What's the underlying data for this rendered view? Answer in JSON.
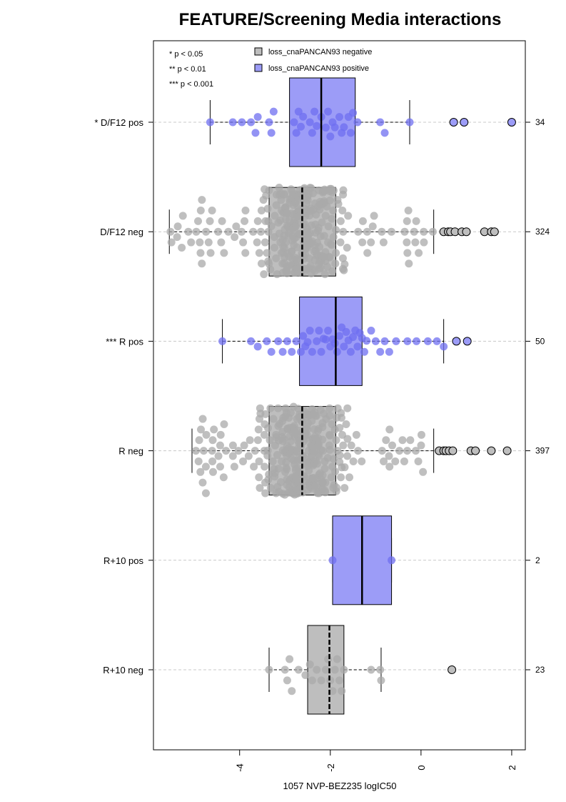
{
  "chart_data": {
    "type": "boxplot",
    "orientation": "horizontal",
    "title": "FEATURE/Screening Media interactions",
    "xlabel": "1057 NVP-BEZ235 logIC50",
    "ylabel": "",
    "xlim": [
      -5.9,
      2.3
    ],
    "x_ticks": [
      -4,
      -2,
      0,
      2
    ],
    "x_tick_labels": [
      "-4",
      "-2",
      "0",
      "2"
    ],
    "grid": "dashed horizontal line per group",
    "legend_position": "top-left",
    "significance_legend": [
      "* p < 0.05",
      "** p < 0.01",
      "*** p < 0.001"
    ],
    "series": [
      {
        "name": "loss_cnaPANCAN93 negative",
        "color": "#bebebe",
        "point_color": "#a9a9a9"
      },
      {
        "name": "loss_cnaPANCAN93 positive",
        "color": "#9c9cf7",
        "point_color": "#6f6ff0"
      }
    ],
    "groups": [
      {
        "label": "* D/F12 pos",
        "series": "loss_cnaPANCAN93 positive",
        "n": "34",
        "whisker_low": -4.65,
        "q1": -2.9,
        "median": -2.2,
        "q3": -1.45,
        "whisker_high": -0.25,
        "outliers": [
          0.72,
          0.95,
          2.0
        ],
        "points": [
          -4.65,
          -4.15,
          -3.95,
          -3.75,
          -3.65,
          -3.6,
          -3.35,
          -3.3,
          -3.25,
          -2.8,
          -2.75,
          -2.7,
          -2.65,
          -2.6,
          -2.45,
          -2.4,
          -2.35,
          -2.3,
          -2.2,
          -2.1,
          -2.05,
          -2.0,
          -1.95,
          -1.9,
          -1.8,
          -1.75,
          -1.7,
          -1.6,
          -1.55,
          -1.5,
          -1.4,
          -0.9,
          -0.8,
          -0.25
        ]
      },
      {
        "label": "D/F12 neg",
        "series": "loss_cnaPANCAN93 negative",
        "n": "324",
        "whisker_low": -5.55,
        "q1": -3.35,
        "median": -2.62,
        "q3": -1.88,
        "whisker_high": 0.28,
        "outliers": [
          0.5,
          0.6,
          0.65,
          0.75,
          0.9,
          1.0,
          1.4,
          1.55,
          1.62
        ]
      },
      {
        "label": "*** R pos",
        "series": "loss_cnaPANCAN93 positive",
        "n": "50",
        "whisker_low": -4.38,
        "q1": -2.68,
        "median": -1.88,
        "q3": -1.3,
        "whisker_high": 0.5,
        "outliers": [
          0.78,
          1.02
        ],
        "points": [
          -4.38,
          -3.75,
          -3.6,
          -3.4,
          -3.3,
          -3.15,
          -3.05,
          -2.95,
          -2.85,
          -2.75,
          -2.65,
          -2.6,
          -2.55,
          -2.5,
          -2.45,
          -2.4,
          -2.3,
          -2.25,
          -2.2,
          -2.15,
          -2.1,
          -2.05,
          -2.0,
          -1.95,
          -1.9,
          -1.85,
          -1.8,
          -1.75,
          -1.7,
          -1.65,
          -1.6,
          -1.55,
          -1.5,
          -1.45,
          -1.4,
          -1.35,
          -1.3,
          -1.25,
          -1.2,
          -1.1,
          -1.0,
          -0.9,
          -0.8,
          -0.7,
          -0.55,
          -0.3,
          -0.1,
          0.15,
          0.35,
          0.5
        ]
      },
      {
        "label": "R neg",
        "series": "loss_cnaPANCAN93 negative",
        "n": "397",
        "whisker_low": -5.05,
        "q1": -3.35,
        "median": -2.62,
        "q3": -1.88,
        "whisker_high": 0.28,
        "outliers": [
          0.4,
          0.5,
          0.55,
          0.62,
          0.7,
          1.1,
          1.2,
          1.55,
          1.9
        ]
      },
      {
        "label": "R+10 pos",
        "series": "loss_cnaPANCAN93 positive",
        "n": "2",
        "whisker_low": -1.95,
        "q1": -1.95,
        "median": -1.3,
        "q3": -0.65,
        "whisker_high": -0.65,
        "outliers": [],
        "points": [
          -1.95,
          -0.65
        ]
      },
      {
        "label": "R+10 neg",
        "series": "loss_cnaPANCAN93 negative",
        "n": "23",
        "whisker_low": -3.35,
        "q1": -2.5,
        "median": -2.02,
        "q3": -1.7,
        "whisker_high": -0.88,
        "outliers": [
          0.68
        ],
        "points": [
          -3.35,
          -3.0,
          -2.95,
          -2.9,
          -2.85,
          -2.7,
          -2.55,
          -2.45,
          -2.4,
          -2.3,
          -2.2,
          -2.1,
          -2.05,
          -2.0,
          -1.95,
          -1.9,
          -1.85,
          -1.8,
          -1.75,
          -1.7,
          -1.1,
          -0.9,
          -0.88
        ]
      }
    ]
  }
}
